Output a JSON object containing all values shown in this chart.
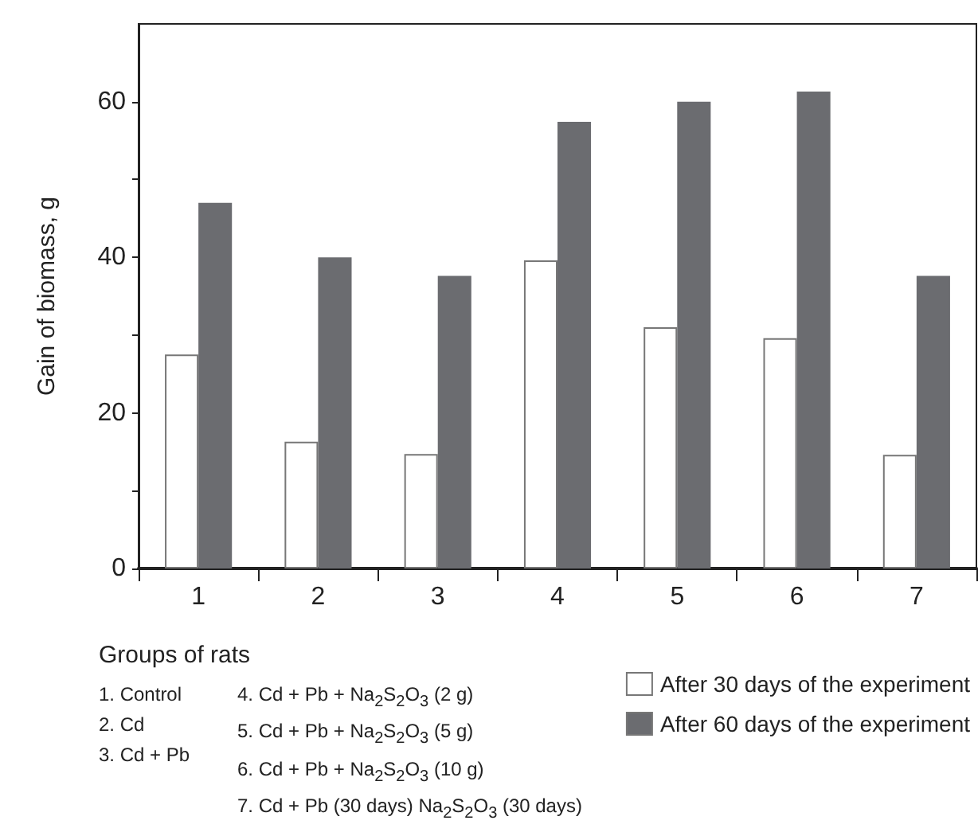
{
  "chart_data": {
    "type": "bar",
    "ylabel": "Gain of biomass, g",
    "categories": [
      "1",
      "2",
      "3",
      "4",
      "5",
      "6",
      "7"
    ],
    "series": [
      {
        "name": "After 30 days of the experiment",
        "color": "#ffffff",
        "values": [
          27.5,
          16.3,
          14.7,
          39.6,
          31,
          29.6,
          14.6
        ]
      },
      {
        "name": "After 60 days of the experiment",
        "color": "#6b6c70",
        "values": [
          47,
          40,
          37.6,
          57.4,
          60,
          61.3,
          37.6
        ]
      }
    ],
    "ylim": [
      0,
      70
    ],
    "yticks": [
      0,
      {
        "value": 10,
        "label": null
      },
      20,
      {
        "value": 30,
        "label": null
      },
      40,
      {
        "value": 50,
        "label": null
      },
      60
    ],
    "grid": false,
    "legend": "bottom right",
    "annotations": [
      "Groups of rats",
      "1. Control",
      "2. Cd",
      "3. Cd + Pb",
      "4. Cd + Pb + Na$_{2}$S$_{2}$O$_{3}$ (2 g)",
      "5. Cd + Pb + Na$_{2}$S$_{2}$O$_{3}$ (5 g)",
      "6. Cd + Pb + Na$_{2}$S$_{2}$O$_{3}$ (10 g)",
      "7. Cd + Pb (30 days) Na$_{2}$S$_{2}$O$_{3}$ (30 days)"
    ]
  }
}
